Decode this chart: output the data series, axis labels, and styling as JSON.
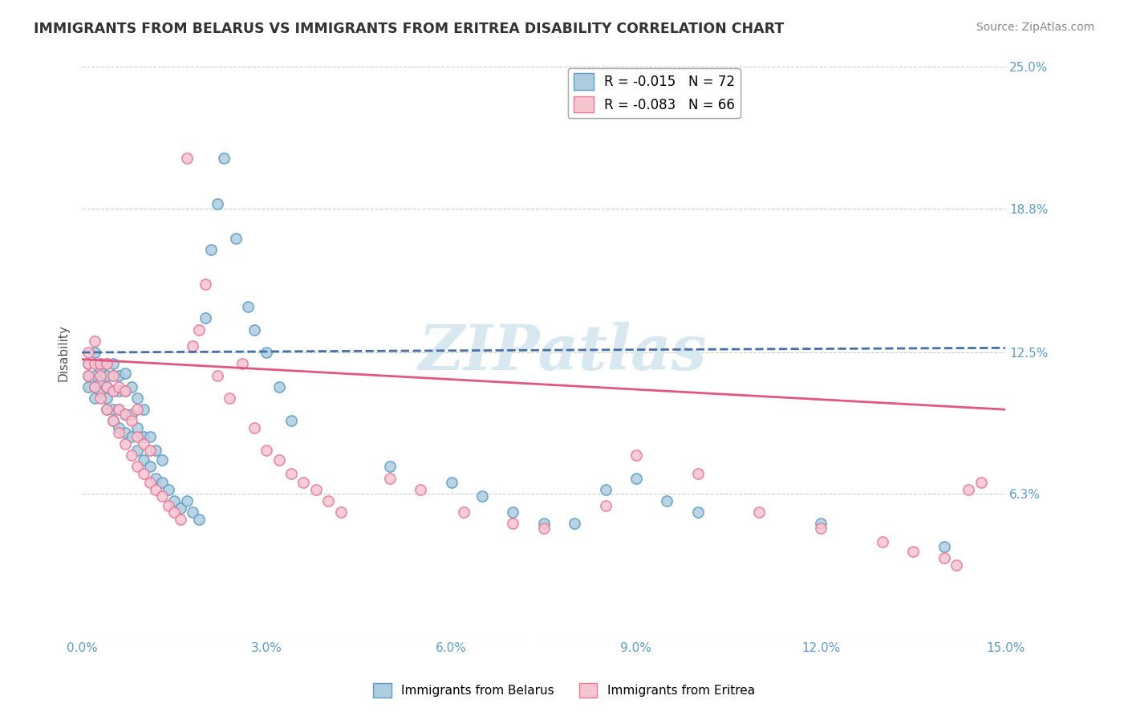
{
  "title": "IMMIGRANTS FROM BELARUS VS IMMIGRANTS FROM ERITREA DISABILITY CORRELATION CHART",
  "source": "Source: ZipAtlas.com",
  "ylabel": "Disability",
  "xmin": 0.0,
  "xmax": 0.15,
  "ymin": 0.0,
  "ymax": 0.25,
  "ytick_vals": [
    0.0,
    0.063,
    0.125,
    0.188,
    0.25
  ],
  "ytick_labels": [
    "",
    "6.3%",
    "12.5%",
    "18.8%",
    "25.0%"
  ],
  "xtick_vals": [
    0.0,
    0.03,
    0.06,
    0.09,
    0.12,
    0.15
  ],
  "xtick_labels": [
    "0.0%",
    "3.0%",
    "6.0%",
    "9.0%",
    "12.0%",
    "15.0%"
  ],
  "legend1_label": "Immigrants from Belarus",
  "legend2_label": "Immigrants from Eritrea",
  "r1": -0.015,
  "n1": 72,
  "r2": -0.083,
  "n2": 66,
  "blue_fill": "#aecde0",
  "blue_edge": "#5b9ec9",
  "pink_fill": "#f7c5d0",
  "pink_edge": "#e87898",
  "blue_line_color": "#4470a8",
  "pink_line_color": "#e05880",
  "watermark": "ZIPatlas",
  "belarus_x": [
    0.001,
    0.001,
    0.001,
    0.002,
    0.002,
    0.002,
    0.002,
    0.003,
    0.003,
    0.003,
    0.003,
    0.004,
    0.004,
    0.004,
    0.004,
    0.004,
    0.005,
    0.005,
    0.005,
    0.005,
    0.005,
    0.006,
    0.006,
    0.006,
    0.006,
    0.007,
    0.007,
    0.007,
    0.007,
    0.008,
    0.008,
    0.008,
    0.009,
    0.009,
    0.009,
    0.01,
    0.01,
    0.01,
    0.011,
    0.011,
    0.012,
    0.012,
    0.013,
    0.013,
    0.014,
    0.015,
    0.016,
    0.017,
    0.018,
    0.019,
    0.02,
    0.021,
    0.022,
    0.023,
    0.025,
    0.027,
    0.028,
    0.03,
    0.032,
    0.034,
    0.05,
    0.06,
    0.065,
    0.07,
    0.075,
    0.08,
    0.085,
    0.09,
    0.095,
    0.1,
    0.12,
    0.14
  ],
  "belarus_y": [
    0.115,
    0.12,
    0.11,
    0.105,
    0.115,
    0.125,
    0.11,
    0.108,
    0.112,
    0.118,
    0.12,
    0.1,
    0.105,
    0.11,
    0.115,
    0.12,
    0.095,
    0.1,
    0.108,
    0.115,
    0.12,
    0.092,
    0.1,
    0.108,
    0.115,
    0.09,
    0.098,
    0.108,
    0.116,
    0.088,
    0.098,
    0.11,
    0.082,
    0.092,
    0.105,
    0.078,
    0.088,
    0.1,
    0.075,
    0.088,
    0.07,
    0.082,
    0.068,
    0.078,
    0.065,
    0.06,
    0.057,
    0.06,
    0.055,
    0.052,
    0.14,
    0.17,
    0.19,
    0.21,
    0.175,
    0.145,
    0.135,
    0.125,
    0.11,
    0.095,
    0.075,
    0.068,
    0.062,
    0.055,
    0.05,
    0.05,
    0.065,
    0.07,
    0.06,
    0.055,
    0.05,
    0.04
  ],
  "eritrea_x": [
    0.001,
    0.001,
    0.001,
    0.002,
    0.002,
    0.002,
    0.003,
    0.003,
    0.003,
    0.004,
    0.004,
    0.004,
    0.005,
    0.005,
    0.005,
    0.006,
    0.006,
    0.006,
    0.007,
    0.007,
    0.007,
    0.008,
    0.008,
    0.009,
    0.009,
    0.009,
    0.01,
    0.01,
    0.011,
    0.011,
    0.012,
    0.013,
    0.014,
    0.015,
    0.016,
    0.017,
    0.018,
    0.019,
    0.02,
    0.022,
    0.024,
    0.026,
    0.028,
    0.03,
    0.032,
    0.034,
    0.036,
    0.038,
    0.04,
    0.042,
    0.05,
    0.055,
    0.062,
    0.07,
    0.075,
    0.085,
    0.09,
    0.1,
    0.11,
    0.12,
    0.13,
    0.135,
    0.14,
    0.142,
    0.144,
    0.146
  ],
  "eritrea_y": [
    0.12,
    0.115,
    0.125,
    0.11,
    0.12,
    0.13,
    0.105,
    0.115,
    0.12,
    0.1,
    0.11,
    0.12,
    0.095,
    0.108,
    0.115,
    0.09,
    0.1,
    0.11,
    0.085,
    0.098,
    0.108,
    0.08,
    0.095,
    0.075,
    0.088,
    0.1,
    0.072,
    0.085,
    0.068,
    0.082,
    0.065,
    0.062,
    0.058,
    0.055,
    0.052,
    0.21,
    0.128,
    0.135,
    0.155,
    0.115,
    0.105,
    0.12,
    0.092,
    0.082,
    0.078,
    0.072,
    0.068,
    0.065,
    0.06,
    0.055,
    0.07,
    0.065,
    0.055,
    0.05,
    0.048,
    0.058,
    0.08,
    0.072,
    0.055,
    0.048,
    0.042,
    0.038,
    0.035,
    0.032,
    0.065,
    0.068
  ]
}
